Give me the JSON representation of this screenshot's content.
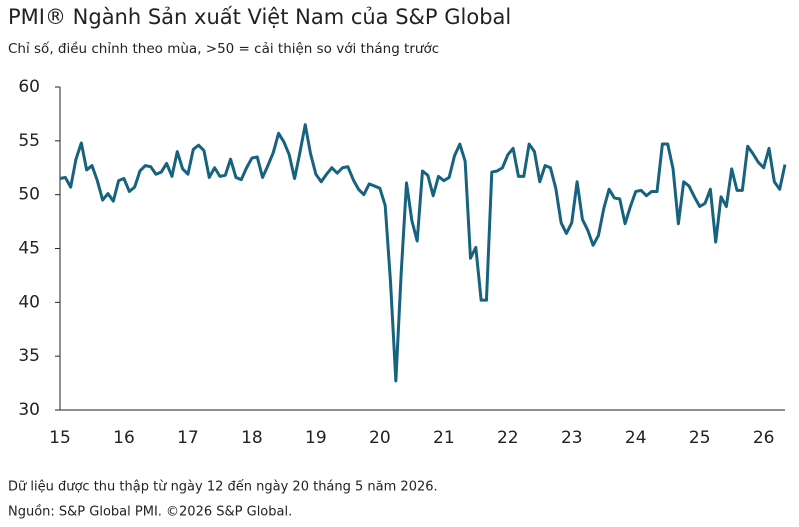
{
  "chart_data": {
    "type": "line",
    "title": "PMI® Ngành Sản xuất Việt Nam của S&P Global",
    "subtitle": "Chỉ số, điều chỉnh theo mùa, >50 = cải thiện so với tháng trước",
    "notes": [
      "Dữ liệu được thu thập từ ngày 12 đến ngày 20 tháng 5 năm 2026.",
      "Nguồn: S&P Global PMI. ©2026 S&P Global."
    ],
    "categories": [
      "15",
      null,
      null,
      null,
      null,
      null,
      null,
      null,
      null,
      null,
      null,
      null,
      "16",
      null,
      null,
      null,
      null,
      null,
      null,
      null,
      null,
      null,
      null,
      null,
      "17",
      null,
      null,
      null,
      null,
      null,
      null,
      null,
      null,
      null,
      null,
      null,
      "18",
      null,
      null,
      null,
      null,
      null,
      null,
      null,
      null,
      null,
      null,
      null,
      "19",
      null,
      null,
      null,
      null,
      null,
      null,
      null,
      null,
      null,
      null,
      null,
      "20",
      null,
      null,
      null,
      null,
      null,
      null,
      null,
      null,
      null,
      null,
      null,
      "21",
      null,
      null,
      null,
      null,
      null,
      null,
      null,
      null,
      null,
      null,
      null,
      "22",
      null,
      null,
      null,
      null,
      null,
      null,
      null,
      null,
      null,
      null,
      null,
      "23",
      null,
      null,
      null,
      null,
      null,
      null,
      null,
      null,
      null,
      null,
      null,
      "24",
      null,
      null,
      null,
      null,
      null,
      null,
      null,
      null,
      null,
      null,
      null,
      "25",
      null,
      null,
      null,
      null,
      null,
      null,
      null,
      null,
      null,
      null,
      null,
      "26",
      null,
      null,
      null,
      null
    ],
    "series": [
      {
        "color": "#17637f",
        "values": [
          51.5,
          51.6,
          50.7,
          53.3,
          54.8,
          52.3,
          52.7,
          51.3,
          49.5,
          50.1,
          49.4,
          51.3,
          51.5,
          50.3,
          50.7,
          52.2,
          52.7,
          52.6,
          51.9,
          52.1,
          52.9,
          51.7,
          54.0,
          52.4,
          51.9,
          54.2,
          54.6,
          54.1,
          51.6,
          52.5,
          51.7,
          51.8,
          53.3,
          51.6,
          51.4,
          52.5,
          53.4,
          53.5,
          51.6,
          52.7,
          53.9,
          55.7,
          54.9,
          53.7,
          51.5,
          53.9,
          56.5,
          53.8,
          51.9,
          51.2,
          51.9,
          52.5,
          52.0,
          52.5,
          52.6,
          51.4,
          50.5,
          50.0,
          51.0,
          50.8,
          50.6,
          49.0,
          41.9,
          32.7,
          42.7,
          51.1,
          47.6,
          45.7,
          52.2,
          51.8,
          49.9,
          51.7,
          51.3,
          51.6,
          53.6,
          54.7,
          53.1,
          44.1,
          45.1,
          40.2,
          40.2,
          52.1,
          52.2,
          52.5,
          53.7,
          54.3,
          51.7,
          51.7,
          54.7,
          54.0,
          51.2,
          52.7,
          52.5,
          50.6,
          47.4,
          46.4,
          47.4,
          51.2,
          47.7,
          46.7,
          45.3,
          46.2,
          48.7,
          50.5,
          49.7,
          49.6,
          47.3,
          48.9,
          50.3,
          50.4,
          49.9,
          50.3,
          50.3,
          54.7,
          54.7,
          52.4,
          47.3,
          51.2,
          50.8,
          49.8,
          48.9,
          49.2,
          50.5,
          45.6,
          49.8,
          48.9,
          52.4,
          50.4,
          50.4,
          54.5,
          53.8,
          53.0,
          52.5,
          54.3,
          51.2,
          50.5,
          52.8
        ]
      }
    ],
    "ylim": [
      30,
      60
    ],
    "yticks": [
      30,
      35,
      40,
      45,
      50,
      55,
      60
    ],
    "grid": false
  }
}
